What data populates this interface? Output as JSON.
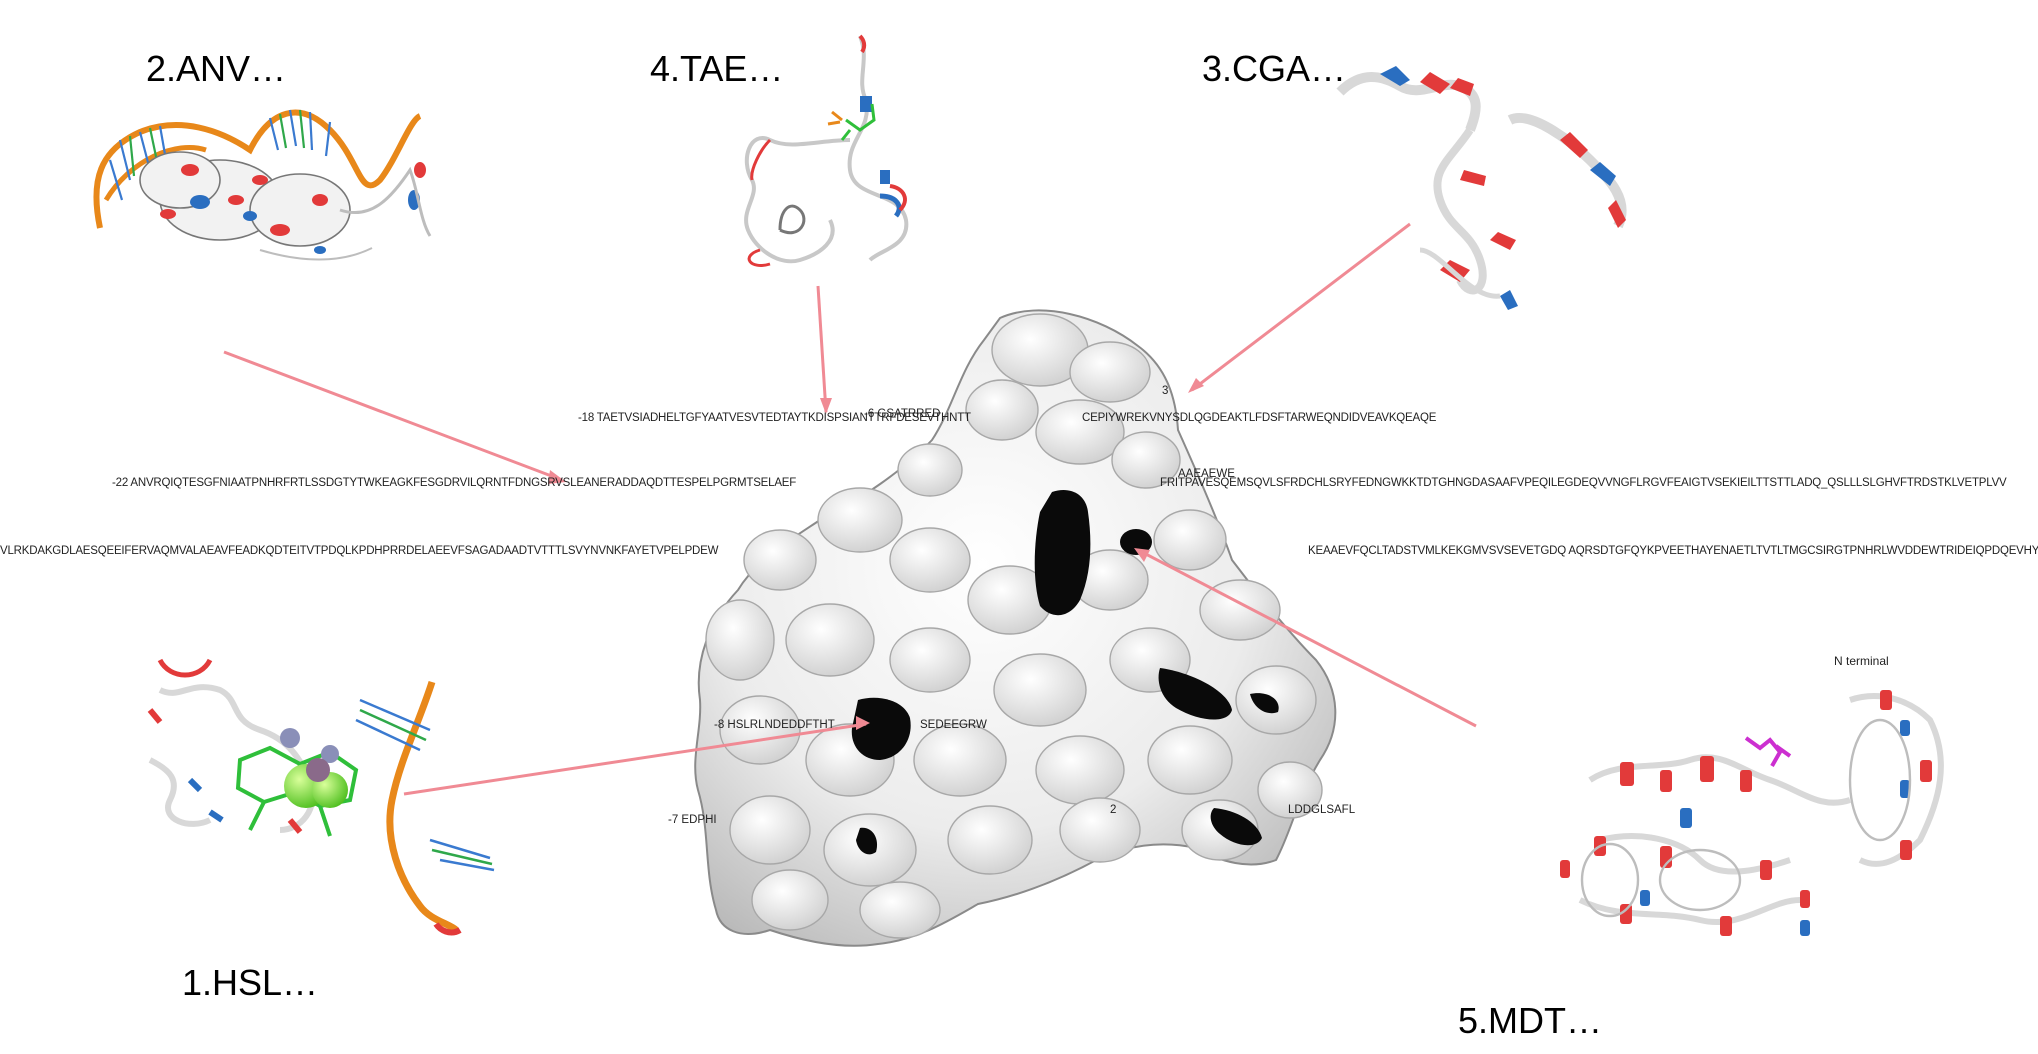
{
  "labels": {
    "l1": "1.HSL…",
    "l2": "2.ANV…",
    "l3": "3.CGA…",
    "l4": "4.TAE…",
    "l5": "5.MDT…"
  },
  "n_terminal": "N terminal",
  "sequences": {
    "s18": "-18 TAETVSIADHELTGFYAATVESVTEDTAYTKDISPSIANTTRFDESEVTHNTT",
    "s18b": "CEPIYWREKVNYSDLQGDEAKTLFDSFTARWEQNDIDVEAVKQEAQE",
    "s22": "-22 ANVRQIQTESGFNIAATPNHRFRTLSSDGTYTWKEAGKFESGDRVILQRNTFDNGSRVSLEANERADDAQDTTESPELPGRMTSELAEF",
    "s22b": "FRITPAVESQEMSQVLSFRDCHLSRYFEDNGWKKTDTGHNGDASAAFVPEQILEGDEQVVNGFLRGVFEAIGTVSEKIEILTTSTTLADQ_QSLLLSLGHVFTRDSTKLVETPLVV",
    "s_left": "VLRKDAKGDLAESQEEIFERVAQMVALAEAVFEADKQDTEITVTPDQLKPDHPRRDELAEEVFSAGADAADTVTTTLSVYNVNKFAYETVPELPDEW",
    "s_right": "KEAAEVFQCLTADSTVMLKEKGMVSVSEVETGDQ AQRSDTGFQYKPVEETHAYENAETLTVTLTMGCSIRGTPNHRLWVDDEWTRIDEIQPDQEVHYTLGW",
    "s8": "-8 HSLRLNDEDDFTHT",
    "s8b": "SEDEEGRW",
    "s7": "-7 EDPHI",
    "s6": "-6 GSATRRED",
    "s3": "3",
    "s_aa": "AAEAEWE",
    "s_dd": "LDDGLSAFL",
    "s2": "2"
  }
}
